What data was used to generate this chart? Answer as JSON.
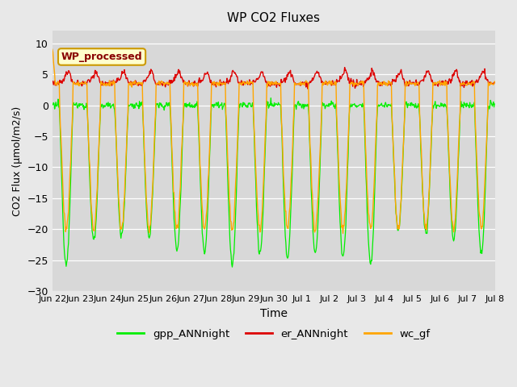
{
  "title": "WP CO2 Fluxes",
  "xlabel": "Time",
  "ylabel": "CO2 Flux (μmol/m2/s)",
  "ylim": [
    -30,
    12
  ],
  "yticks": [
    -30,
    -25,
    -20,
    -15,
    -10,
    -5,
    0,
    5,
    10
  ],
  "fig_bg_color": "#e8e8e8",
  "plot_bg_color": "#d8d8d8",
  "grid_color": "white",
  "colors": {
    "gpp": "#00ee00",
    "er": "#dd0000",
    "wc": "#ffa500"
  },
  "legend_label": "WP_processed",
  "legend_text_color": "#880000",
  "legend_border_color": "#cc9900",
  "legend_box_color": "#ffffcc",
  "n_points_per_day": 48,
  "n_days": 16
}
